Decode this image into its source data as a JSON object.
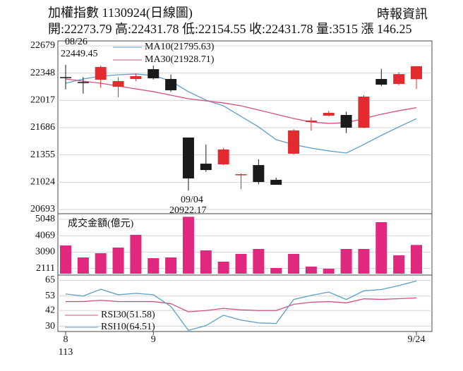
{
  "header": {
    "title": "加權指數 1130924(日線圖)",
    "source": "時報資訊",
    "quote": "開:22273.79 高:22431.78 低:22154.55 收:22431.78 量:3515 漲 146.25"
  },
  "chart_data": [
    {
      "type": "candlestick",
      "open": [
        22300,
        22240,
        22268,
        22183,
        22277,
        22396,
        22277,
        21566,
        21249,
        21241,
        21110,
        21232,
        21053,
        21370,
        21755,
        21832,
        21840,
        21686,
        22277,
        22217,
        22273.79
      ],
      "high": [
        22449.45,
        22300,
        22440,
        22300,
        22340,
        22440,
        22330,
        21566,
        21481,
        21440,
        21130,
        21301,
        21080,
        21670,
        21810,
        21890,
        21880,
        22080,
        22400,
        22360,
        22431.78
      ],
      "low": [
        22150,
        22100,
        22170,
        22054,
        22250,
        22270,
        22120,
        20922.17,
        21150,
        21230,
        20940,
        21000,
        20993,
        21360,
        21650,
        21820,
        21620,
        21680,
        22190,
        22200,
        22154.55
      ],
      "close": [
        22290,
        22230,
        22422,
        22251,
        22311,
        22285,
        22140,
        21070,
        21172,
        21421,
        21121,
        21027,
        20993,
        21652,
        21772,
        21866,
        21686,
        22063,
        22208,
        22336,
        22431.78
      ],
      "up_color": "#e32b2f",
      "down_color": "#1a1a1a",
      "series": [
        {
          "name": "MA10(21795.63)",
          "color": "#5d9ec6",
          "values": [
            22225,
            22277,
            22311,
            22328,
            22337,
            22319,
            22251,
            22123,
            22020,
            21951,
            21823,
            21695,
            21540,
            21481,
            21438,
            21404,
            21378,
            21481,
            21592,
            21695,
            21795.63
          ]
        },
        {
          "name": "MA30(21928.71)",
          "color": "#d6507f",
          "values": [
            22277,
            22251,
            22225,
            22191,
            22157,
            22123,
            22080,
            22037,
            22011,
            21986,
            21951,
            21900,
            21849,
            21797,
            21755,
            21738,
            21746,
            21797,
            21849,
            21892,
            21928.71
          ]
        }
      ],
      "annotations": [
        "08/26",
        "22449.45",
        "09/04",
        "20922.17"
      ],
      "ylim": [
        20693,
        22679
      ],
      "yticks": [
        20693,
        21024,
        21355,
        21686,
        22017,
        22348,
        22679
      ],
      "grid": true
    },
    {
      "type": "bar",
      "title": "成交金額(億元)",
      "color": "#e0287f",
      "values": [
        3487,
        2770,
        3023,
        3360,
        4119,
        2728,
        2770,
        5200,
        3192,
        2517,
        2981,
        3276,
        2137,
        2981,
        2222,
        2095,
        3276,
        3276,
        4878,
        2896,
        3515
      ],
      "ylim": [
        1800,
        5300
      ],
      "yticks": [
        2111,
        3090,
        4069,
        5048
      ],
      "grid": true
    },
    {
      "type": "line",
      "categories": [
        "8",
        null,
        null,
        null,
        null,
        "9",
        null,
        null,
        null,
        null,
        null,
        null,
        null,
        null,
        null,
        null,
        null,
        null,
        null,
        null,
        "9/24"
      ],
      "x_sublabel": "113",
      "series": [
        {
          "name": "RSI30(51.58)",
          "color": "#d6507f",
          "values": [
            48.8,
            48.8,
            49.8,
            48.8,
            48.8,
            48.8,
            47.2,
            41,
            42,
            43.6,
            42.5,
            42,
            42,
            46.7,
            48.3,
            48.8,
            47.8,
            50.9,
            50.5,
            51,
            51.58
          ]
        },
        {
          "name": "RSI10(64.51)",
          "color": "#5d9ec6",
          "values": [
            54.6,
            53.0,
            58.2,
            54.0,
            55.1,
            54.0,
            45.1,
            26.9,
            30.5,
            38.4,
            34.7,
            32.6,
            32.1,
            50.4,
            53.5,
            56.1,
            50.4,
            57,
            58,
            61,
            64.51
          ]
        }
      ],
      "ylim": [
        26,
        69
      ],
      "yticks": [
        30,
        42,
        53,
        65
      ],
      "grid": true
    }
  ]
}
